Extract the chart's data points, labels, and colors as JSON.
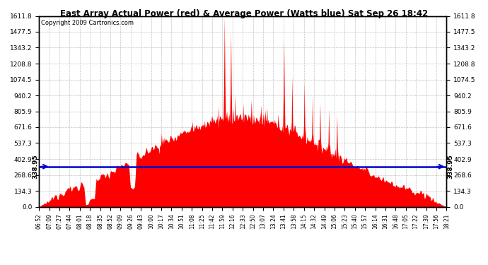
{
  "title": "East Array Actual Power (red) & Average Power (Watts blue) Sat Sep 26 18:42",
  "copyright": "Copyright 2009 Cartronics.com",
  "average_power": 338.95,
  "ylim": [
    0.0,
    1611.8
  ],
  "yticks_left": [
    0.0,
    134.3,
    268.6,
    402.9,
    537.3,
    671.6,
    805.9,
    940.2,
    1074.5,
    1208.8,
    1343.2,
    1477.5,
    1611.8
  ],
  "ytick_labels_left": [
    "0.0",
    "134.3",
    "268.6",
    "402.9",
    "537.3",
    "671.6",
    "805.9",
    "940.2",
    "1074.5",
    "1208.8",
    "1343.2",
    "1477.5",
    "1611.8"
  ],
  "yticks_right": [
    0.0,
    134.3,
    268.6,
    402.9,
    537.3,
    671.6,
    805.9,
    940.2,
    1074.5,
    1208.8,
    1343.2,
    1477.5,
    1611.8
  ],
  "ytick_labels_right": [
    "0.0",
    "134.3",
    "268.6",
    "402.9",
    "537.3",
    "671.6",
    "805.9",
    "940.2",
    "1074.5",
    "1208.8",
    "1343.2",
    "1477.5",
    "1611.8"
  ],
  "xtick_labels": [
    "06:52",
    "07:09",
    "07:27",
    "07:44",
    "08:01",
    "08:18",
    "08:35",
    "08:52",
    "09:09",
    "09:26",
    "09:43",
    "10:00",
    "10:17",
    "10:34",
    "10:51",
    "11:08",
    "11:25",
    "11:42",
    "11:59",
    "12:16",
    "12:33",
    "12:50",
    "13:07",
    "13:24",
    "13:41",
    "13:58",
    "14:15",
    "14:32",
    "14:49",
    "15:06",
    "15:23",
    "15:40",
    "15:57",
    "16:14",
    "16:31",
    "16:48",
    "17:05",
    "17:22",
    "17:39",
    "17:56",
    "18:21"
  ],
  "bg_color": "#ffffff",
  "fill_color": "#ff0000",
  "line_color": "#0000cc",
  "grid_color": "#bbbbbb",
  "title_color": "#000000",
  "avg_label": "338.95",
  "avg_label_color": "#000000",
  "n_points": 700
}
